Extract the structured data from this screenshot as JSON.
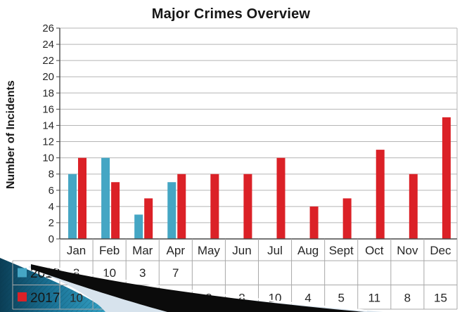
{
  "title": "Major Crimes Overview",
  "y_axis_title": "Number of Incidents",
  "colors": {
    "series_2018": "#45A6C4",
    "series_2017": "#DB2127",
    "gridline": "#B5B5B5",
    "axis": "#4A4A4A",
    "table_border": "#A8A8A8",
    "text": "#262626",
    "decor_teal_dark": "#0B3E56",
    "decor_teal_mid": "#1B7498",
    "decor_teal_light": "#34A1C4",
    "decor_hatch": "#06303F",
    "decor_pale": "#D7E3ED",
    "decor_black": "#0B0B0B",
    "decor_highlight": "#FFFFFF"
  },
  "chart_data": {
    "type": "bar",
    "title": "Major Crimes Overview",
    "xlabel": "",
    "ylabel": "Number of Incidents",
    "categories": [
      "Jan",
      "Feb",
      "Mar",
      "Apr",
      "May",
      "Jun",
      "Jul",
      "Aug",
      "Sept",
      "Oct",
      "Nov",
      "Dec"
    ],
    "series": [
      {
        "name": "2018",
        "color_key": "series_2018",
        "values": [
          8,
          10,
          3,
          7,
          null,
          null,
          null,
          null,
          null,
          null,
          null,
          null
        ]
      },
      {
        "name": "2017",
        "color_key": "series_2017",
        "values": [
          10,
          7,
          5,
          8,
          8,
          8,
          10,
          4,
          5,
          11,
          8,
          15
        ]
      }
    ],
    "ylim": [
      0,
      26
    ],
    "ytick_step": 2,
    "grid": true,
    "legend_position": "data-table-left",
    "data_table_shown": true
  }
}
